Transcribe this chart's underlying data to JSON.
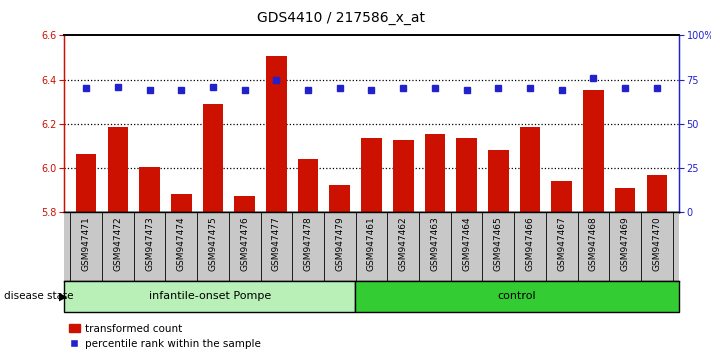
{
  "title": "GDS4410 / 217586_x_at",
  "samples": [
    "GSM947471",
    "GSM947472",
    "GSM947473",
    "GSM947474",
    "GSM947475",
    "GSM947476",
    "GSM947477",
    "GSM947478",
    "GSM947479",
    "GSM947461",
    "GSM947462",
    "GSM947463",
    "GSM947464",
    "GSM947465",
    "GSM947466",
    "GSM947467",
    "GSM947468",
    "GSM947469",
    "GSM947470"
  ],
  "bar_values": [
    6.065,
    6.185,
    6.005,
    5.885,
    6.29,
    5.875,
    6.505,
    6.04,
    5.925,
    6.135,
    6.125,
    6.155,
    6.135,
    6.08,
    6.185,
    5.94,
    6.355,
    5.91,
    5.97
  ],
  "dot_values": [
    70,
    71,
    69,
    69,
    71,
    69,
    75,
    69,
    70,
    69,
    70,
    70,
    69,
    70,
    70,
    69,
    76,
    70,
    70
  ],
  "ylim_left": [
    5.8,
    6.6
  ],
  "ylim_right": [
    0,
    100
  ],
  "yticks_left": [
    5.8,
    6.0,
    6.2,
    6.4,
    6.6
  ],
  "yticks_right": [
    0,
    25,
    50,
    75,
    100
  ],
  "ytick_right_labels": [
    "0",
    "25",
    "50",
    "75",
    "100%"
  ],
  "group1_label": "infantile-onset Pompe",
  "group2_label": "control",
  "group1_count": 9,
  "group2_count": 10,
  "bar_color": "#cc1100",
  "dot_color": "#2222cc",
  "group1_bg": "#b8f0b8",
  "group2_bg": "#33cc33",
  "disease_state_label": "disease state",
  "legend_bar_label": "transformed count",
  "legend_dot_label": "percentile rank within the sample"
}
